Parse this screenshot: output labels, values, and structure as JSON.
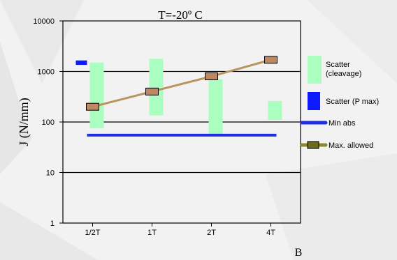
{
  "chart_data": {
    "type": "bar",
    "title": "T=-20º C",
    "xlabel": "B",
    "ylabel": "J (N/mm)",
    "yscale": "log",
    "ylim": [
      1,
      10000
    ],
    "yticks": [
      "1",
      "10",
      "100",
      "1000",
      "10000"
    ],
    "yticks_values": [
      1,
      10,
      100,
      1000,
      10000
    ],
    "categories": [
      "1/2T",
      "1T",
      "2T",
      "4T"
    ],
    "grid": "horizontal",
    "legend_position": "right",
    "colors": {
      "scatter_cleavage": "#aaffc0",
      "scatter_pmax": "#0d1aff",
      "min_abs": "#1f2fe0",
      "max_allowed_line": "#b8955e",
      "max_allowed_marker": "#c08860"
    },
    "series": [
      {
        "name": "Scatter\n(cleavage)",
        "kind": "range",
        "ranges": [
          [
            75,
            1500
          ],
          [
            135,
            1780
          ],
          [
            55,
            700
          ],
          [
            110,
            260
          ]
        ]
      },
      {
        "name": "Scatter (P max)",
        "kind": "range",
        "ranges": [
          [
            1350,
            1650
          ],
          null,
          null,
          null
        ]
      },
      {
        "name": "Min abs",
        "kind": "hline",
        "value": 55
      },
      {
        "name": "Max.  allowed",
        "kind": "line",
        "values": [
          200,
          400,
          800,
          1700
        ]
      }
    ]
  }
}
